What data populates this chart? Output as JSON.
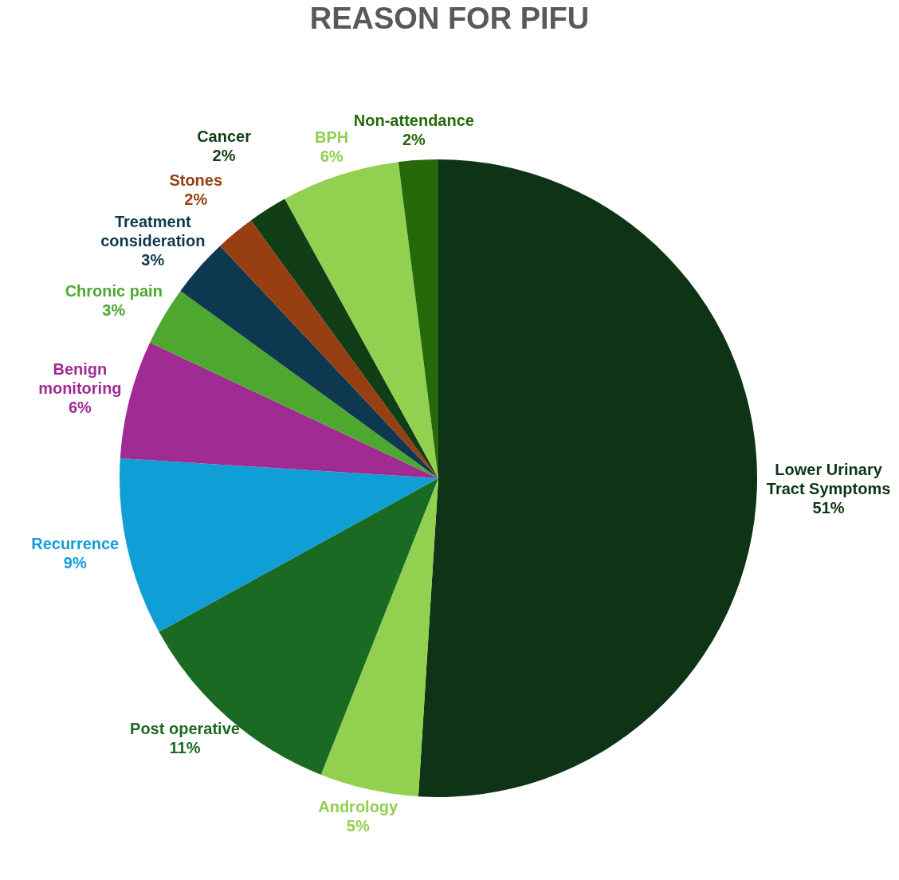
{
  "chart_data": {
    "type": "pie",
    "title": "REASON FOR PIFU",
    "categories": [
      "Lower Urinary Tract Symptoms",
      "Andrology",
      "Post operative",
      "Recurrence",
      "Benign monitoring",
      "Chronic pain",
      "Treatment consideration",
      "Stones",
      "Cancer",
      "BPH",
      "Non-attendance"
    ],
    "values": [
      51,
      5,
      11,
      9,
      6,
      3,
      3,
      2,
      2,
      6,
      2
    ],
    "colors": [
      "#0e3415",
      "#92d050",
      "#1b6a23",
      "#0f9ed5",
      "#a02b93",
      "#4ea72e",
      "#0e3850",
      "#973f12",
      "#123e17",
      "#92d050",
      "#25690a"
    ],
    "value_labels": [
      "51%",
      "5%",
      "11%",
      "9%",
      "6%",
      "3%",
      "3%",
      "2%",
      "2%",
      "6%",
      "2%"
    ]
  }
}
